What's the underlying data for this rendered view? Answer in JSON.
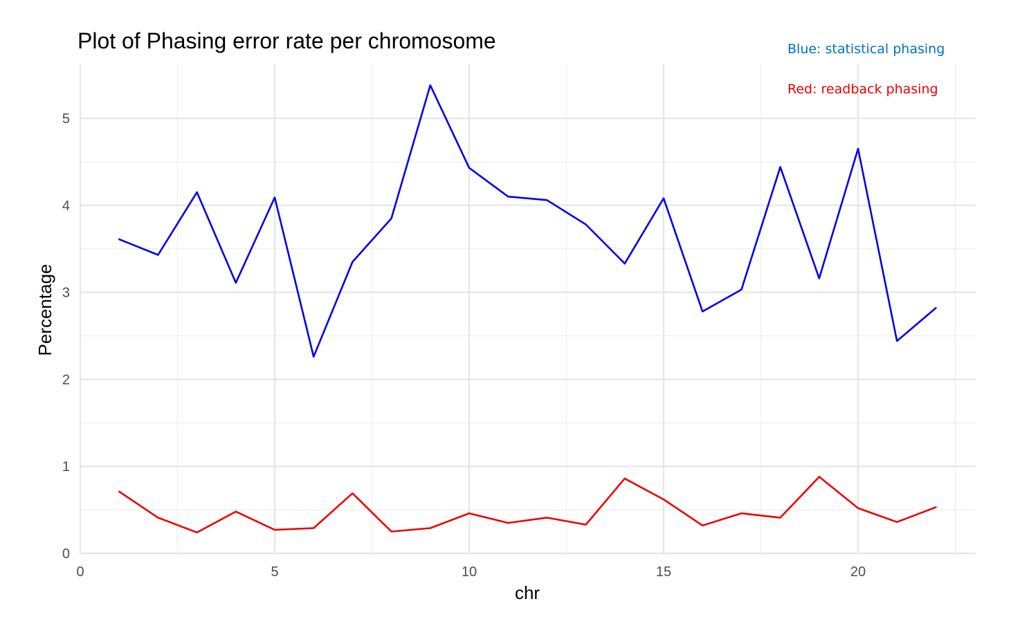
{
  "chart_data": {
    "type": "line",
    "title": "Plot of Phasing error rate per chromosome",
    "xlabel": "chr",
    "ylabel": "Percentage",
    "xlim": [
      0,
      23
    ],
    "ylim": [
      0,
      5.5
    ],
    "x_ticks": [
      0,
      5,
      10,
      15,
      20
    ],
    "y_ticks": [
      0,
      1,
      2,
      3,
      4,
      5
    ],
    "grid": true,
    "x": [
      1,
      2,
      3,
      4,
      5,
      6,
      7,
      8,
      9,
      10,
      11,
      12,
      13,
      14,
      15,
      16,
      17,
      18,
      19,
      20,
      21,
      22
    ],
    "series": [
      {
        "color": "#0000ee",
        "values": [
          3.61,
          3.43,
          4.15,
          3.11,
          4.09,
          2.26,
          3.35,
          3.85,
          5.38,
          4.43,
          4.1,
          4.06,
          3.78,
          3.33,
          4.08,
          2.78,
          3.03,
          4.44,
          3.16,
          4.65,
          2.44,
          2.82
        ]
      },
      {
        "color": "#ee0000",
        "values": [
          0.71,
          0.41,
          0.24,
          0.48,
          0.27,
          0.29,
          0.69,
          0.25,
          0.29,
          0.46,
          0.35,
          0.41,
          0.33,
          0.86,
          0.62,
          0.32,
          0.46,
          0.41,
          0.88,
          0.52,
          0.36,
          0.53
        ]
      }
    ],
    "annotations": [
      {
        "text": "Blue: statistical phasing",
        "color": "#0070c0"
      },
      {
        "text": "Red: readback phasing",
        "color": "#ee0000"
      }
    ]
  }
}
